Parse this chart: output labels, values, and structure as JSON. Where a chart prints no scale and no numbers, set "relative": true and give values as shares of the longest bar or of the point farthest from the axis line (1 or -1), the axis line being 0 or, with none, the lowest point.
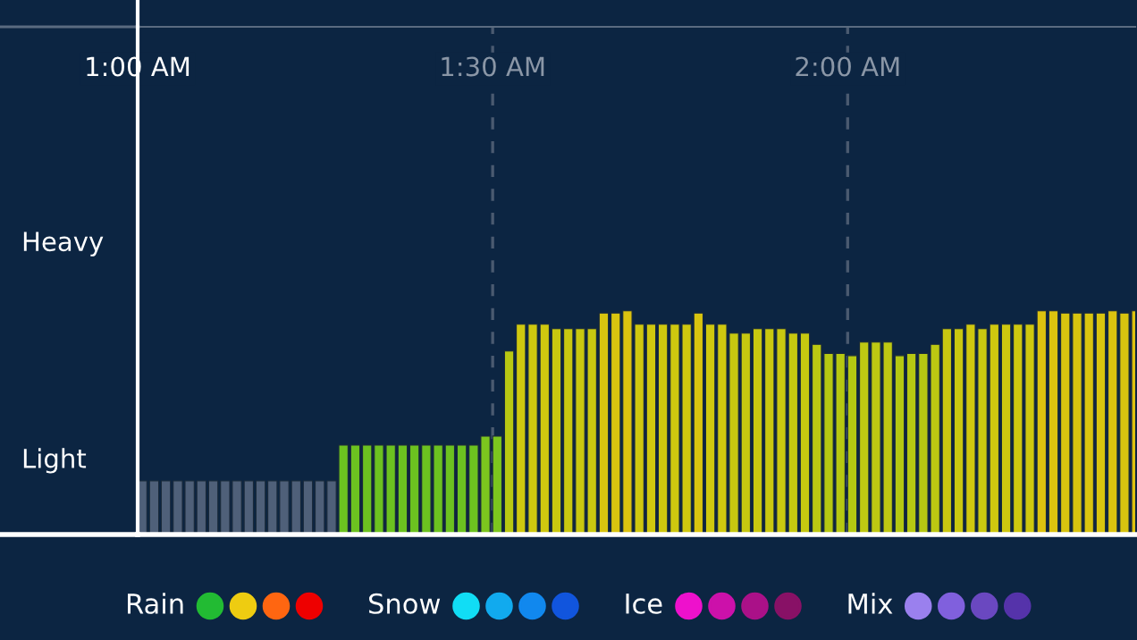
{
  "chart_data": {
    "type": "bar",
    "relative": true,
    "xlim": [
      1.0,
      2.405
    ],
    "xticks": [
      {
        "value": 1.0,
        "label": "1:00 AM"
      },
      {
        "value": 1.5,
        "label": "1:30 AM"
      },
      {
        "value": 2.0,
        "label": "2:00 AM"
      }
    ],
    "grid": "x",
    "annotations": [
      "Heavy",
      "Light",
      "Rain",
      "Snow",
      "Ice",
      "Mix"
    ],
    "x": [
      1.0,
      1.0167,
      1.0333,
      1.05,
      1.0667,
      1.0833,
      1.1,
      1.1167,
      1.1333,
      1.15,
      1.1667,
      1.1833,
      1.2,
      1.2167,
      1.2333,
      1.25,
      1.2667,
      1.2833,
      1.3,
      1.3167,
      1.3333,
      1.35,
      1.3667,
      1.3833,
      1.4,
      1.4167,
      1.4333,
      1.45,
      1.4667,
      1.4833,
      1.5,
      1.5167,
      1.5333,
      1.55,
      1.5667,
      1.5833,
      1.6,
      1.6167,
      1.6333,
      1.65,
      1.6667,
      1.6833,
      1.7,
      1.7167,
      1.7333,
      1.75,
      1.7667,
      1.7833,
      1.8,
      1.8167,
      1.8333,
      1.85,
      1.8667,
      1.8833,
      1.9,
      1.9167,
      1.9333,
      1.95,
      1.9667,
      1.9833,
      2.0,
      2.0167,
      2.0333,
      2.05,
      2.0667,
      2.0833,
      2.1,
      2.1167,
      2.1333,
      2.15,
      2.1667,
      2.1833,
      2.2,
      2.2167,
      2.2333,
      2.25,
      2.2667,
      2.2833,
      2.3,
      2.3167,
      2.3333,
      2.35,
      2.3667,
      2.3833,
      2.4
    ],
    "values": [
      0.24,
      0.24,
      0.24,
      0.24,
      0.24,
      0.24,
      0.24,
      0.24,
      0.24,
      0.24,
      0.24,
      0.24,
      0.24,
      0.24,
      0.24,
      0.24,
      0.24,
      0.4,
      0.4,
      0.4,
      0.4,
      0.4,
      0.4,
      0.4,
      0.4,
      0.4,
      0.4,
      0.4,
      0.4,
      0.44,
      0.44,
      0.82,
      0.94,
      0.94,
      0.94,
      0.92,
      0.92,
      0.92,
      0.92,
      0.99,
      0.99,
      1.0,
      0.94,
      0.94,
      0.94,
      0.94,
      0.94,
      0.99,
      0.94,
      0.94,
      0.9,
      0.9,
      0.92,
      0.92,
      0.92,
      0.9,
      0.9,
      0.85,
      0.81,
      0.81,
      0.8,
      0.86,
      0.86,
      0.86,
      0.8,
      0.81,
      0.81,
      0.85,
      0.92,
      0.92,
      0.94,
      0.92,
      0.94,
      0.94,
      0.94,
      0.94,
      1.0,
      1.0,
      0.99,
      0.99,
      0.99,
      0.99,
      1.0,
      0.99,
      1.0
    ],
    "colors": [
      "#4f6079",
      "#4f6079",
      "#4f6079",
      "#4f6079",
      "#4f6079",
      "#4f6079",
      "#4f6079",
      "#4f6079",
      "#4f6079",
      "#4f6079",
      "#4f6079",
      "#4f6079",
      "#4f6079",
      "#4f6079",
      "#4f6079",
      "#4f6079",
      "#4f6079",
      "#6cc220",
      "#6cc220",
      "#6cc220",
      "#6cc220",
      "#6cc220",
      "#6cc220",
      "#6cc220",
      "#6cc220",
      "#6cc220",
      "#6cc220",
      "#6cc220",
      "#6cc220",
      "#7cc61e",
      "#7cc61e",
      "#b8c812",
      "#cfc80f",
      "#cfc80f",
      "#cfc80f",
      "#c9c810",
      "#c9c810",
      "#c9c810",
      "#c9c810",
      "#d8c40f",
      "#d8c40f",
      "#dcc20f",
      "#cfc80f",
      "#cfc80f",
      "#cfc80f",
      "#cfc80f",
      "#cfc80f",
      "#d8c40f",
      "#cfc80f",
      "#cfc80f",
      "#c6c810",
      "#c6c810",
      "#c9c810",
      "#c9c810",
      "#c9c810",
      "#c6c810",
      "#c6c810",
      "#bcc812",
      "#b6c812",
      "#b6c812",
      "#b4c812",
      "#bec812",
      "#bec812",
      "#bec812",
      "#b4c812",
      "#b6c812",
      "#b6c812",
      "#bcc812",
      "#c9c810",
      "#c9c810",
      "#cfc80f",
      "#c9c810",
      "#cfc80f",
      "#cfc80f",
      "#cfc80f",
      "#cfc80f",
      "#dcc20f",
      "#dcc20f",
      "#d8c40f",
      "#d8c40f",
      "#d8c40f",
      "#d8c40f",
      "#dcc20f",
      "#d8c40f",
      "#dcc20f"
    ]
  }
}
